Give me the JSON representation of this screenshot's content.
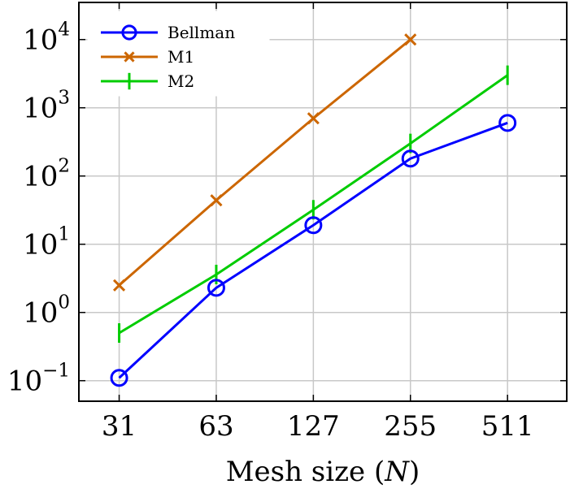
{
  "chart_data": {
    "type": "line",
    "title": "",
    "xlabel": "Mesh size",
    "xlabel_var": "N",
    "ylabel": "",
    "yscale": "log",
    "ylim": [
      0.05,
      35000
    ],
    "grid": true,
    "legend_position": "top-left",
    "categories": [
      "31",
      "63",
      "127",
      "255",
      "511"
    ],
    "y_ticks": [
      {
        "base": "10",
        "exp": "−1",
        "value": 0.1
      },
      {
        "base": "10",
        "exp": "0",
        "value": 1
      },
      {
        "base": "10",
        "exp": "1",
        "value": 10
      },
      {
        "base": "10",
        "exp": "2",
        "value": 100
      },
      {
        "base": "10",
        "exp": "3",
        "value": 1000
      },
      {
        "base": "10",
        "exp": "4",
        "value": 10000
      }
    ],
    "series": [
      {
        "name": "Bellman",
        "color": "#0000ff",
        "marker": "circle",
        "values": [
          0.11,
          2.3,
          19,
          180,
          600
        ]
      },
      {
        "name": "M1",
        "color": "#cc6600",
        "marker": "x",
        "values": [
          2.5,
          44,
          700,
          10000,
          null
        ]
      },
      {
        "name": "M2",
        "color": "#00cc00",
        "marker": "vbar",
        "values": [
          0.5,
          3.6,
          32,
          300,
          3000
        ]
      }
    ]
  }
}
